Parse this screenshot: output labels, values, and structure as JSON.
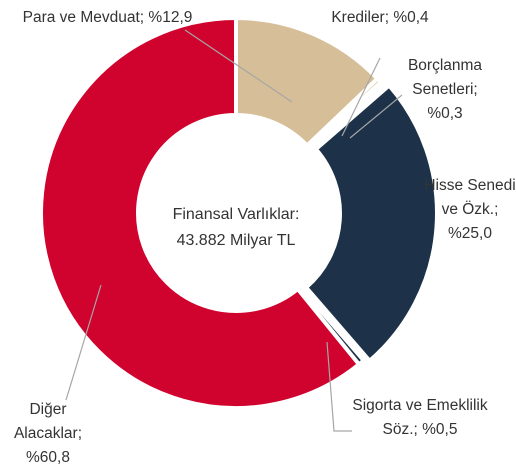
{
  "chart_data": {
    "type": "donut",
    "center_label": [
      "Finansal Varlıklar:",
      "43.882 Milyar TL"
    ],
    "categories": [
      "Para ve Mevduat;",
      "Krediler;",
      "Borçlanma Senetleri;",
      "Hisse Senedi ve Özk.;",
      "Sigorta ve Emeklilik Söz.;",
      "Diğer Alacaklar;"
    ],
    "values": [
      12.9,
      0.4,
      0.3,
      25.0,
      0.5,
      60.8
    ],
    "value_labels": [
      "%12,9",
      "%0,4",
      "%0,3",
      "%25,0",
      "%0,5",
      "%60,8"
    ],
    "colors": [
      "#d6bf98",
      "#d6bf98",
      "#e8c96a",
      "#1d3249",
      "#1d3249",
      "#d0022e"
    ]
  }
}
